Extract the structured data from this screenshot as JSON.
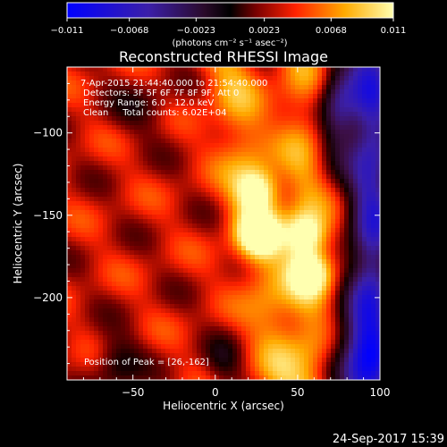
{
  "chart_data": {
    "type": "heatmap",
    "title": "Reconstructed RHESSI Image",
    "xlabel": "Heliocentric X (arcsec)",
    "ylabel": "Heliocentric Y (arcsec)",
    "xlim": [
      -90,
      100
    ],
    "ylim": [
      -250,
      -60
    ],
    "x_ticks": [
      -50,
      0,
      50,
      100
    ],
    "x_tick_labels": [
      "−50",
      "0",
      "50",
      "100"
    ],
    "y_ticks": [
      -100,
      -150,
      -200
    ],
    "y_tick_labels": [
      "−100",
      "−150",
      "−200"
    ],
    "colorbar": {
      "ticks": [
        -0.011,
        -0.0068,
        -0.0023,
        0.0023,
        0.0068,
        0.011
      ],
      "tick_labels": [
        "−0.011",
        "−0.0068",
        "−0.0023",
        "0.0023",
        "0.0068",
        "0.011"
      ],
      "range": [
        -0.011,
        0.011
      ],
      "units": "(photons cm⁻² s⁻¹ asec⁻²)"
    },
    "annotations": [
      "7-Apr-2015 21:44:40.000 to 21:54:40.000",
      "Detectors: 3F 5F 6F 7F 8F 9F, Att 0",
      "Energy Range: 6.0 - 12.0 keV",
      "Clean     Total counts: 6.02E+04"
    ],
    "peak_label": "Position of Peak = [26,-162]",
    "peak": [
      26,
      -162
    ],
    "sources": [
      {
        "x": 26,
        "y": -162,
        "value": 0.011
      },
      {
        "x": 26,
        "y": -135,
        "value": 0.0095
      },
      {
        "x": 55,
        "y": -162,
        "value": 0.0098
      },
      {
        "x": 58,
        "y": -185,
        "value": 0.0092
      }
    ],
    "timestamp": "24-Sep-2017 15:39"
  }
}
